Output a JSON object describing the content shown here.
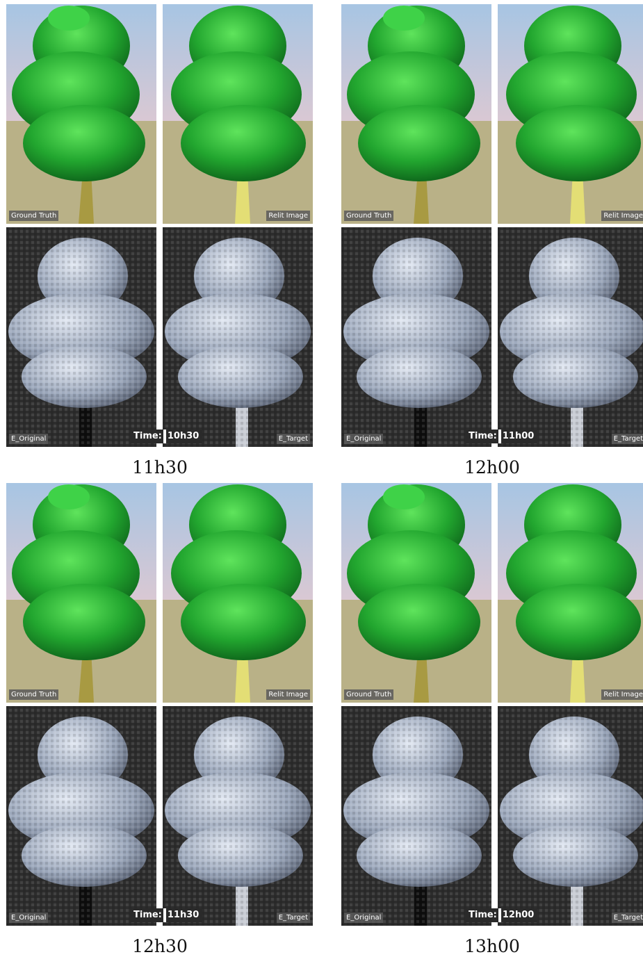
{
  "labels": {
    "ground_truth": "Ground Truth",
    "relit_image": "Relit Image",
    "e_original": "E_Original",
    "e_target": "E_Target",
    "time_prefix": "Time:"
  },
  "panels": [
    {
      "time": "10h30",
      "caption": "11h30"
    },
    {
      "time": "11h00",
      "caption": "12h00"
    },
    {
      "time": "11h30",
      "caption": "12h30"
    },
    {
      "time": "12h00",
      "caption": "13h00"
    }
  ],
  "colors": {
    "sky_top": "#a9c6e2",
    "sky_horizon": "#d7c7d4",
    "ground": "#b8b088",
    "foliage": "#1e9a2c",
    "foliage_light": "#4fdc52",
    "trunk": "#b0a24a",
    "trunk_relit": "#e5e17a",
    "env_background": "#2d2d2d",
    "env_cloud": "#b9c3d4"
  }
}
